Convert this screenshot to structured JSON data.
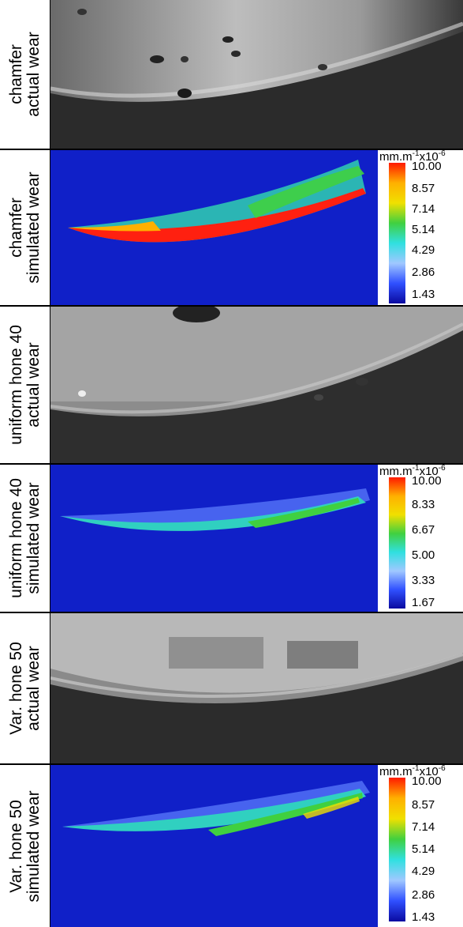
{
  "panels": [
    {
      "type": "actual",
      "label_line1": "chamfer",
      "label_line2": "actual wear"
    },
    {
      "type": "simulated",
      "label_line1": "chamfer",
      "label_line2": "simulated wear",
      "colorbar": {
        "unit": "mm.m",
        "exp1": "-1",
        "mult": "x10",
        "exp2": "-6",
        "ticks": [
          "10.00",
          "8.57",
          "7.14",
          "5.14",
          "4.29",
          "2.86",
          "1.43"
        ]
      }
    },
    {
      "type": "actual",
      "label_line1": "uniform hone 40",
      "label_line2": "actual wear"
    },
    {
      "type": "simulated",
      "label_line1": "uniform hone 40",
      "label_line2": "simulated wear",
      "colorbar": {
        "unit": "mm.m",
        "exp1": "-1",
        "mult": "x10",
        "exp2": "-6",
        "ticks": [
          "10.00",
          "8.33",
          "6.67",
          "5.00",
          "3.33",
          "1.67"
        ]
      }
    },
    {
      "type": "actual",
      "label_line1": "Var. hone 50",
      "label_line2": "actual wear"
    },
    {
      "type": "simulated",
      "label_line1": "Var. hone 50",
      "label_line2": "simulated wear",
      "colorbar": {
        "unit": "mm.m",
        "exp1": "-1",
        "mult": "x10",
        "exp2": "-6",
        "ticks": [
          "10.00",
          "8.57",
          "7.14",
          "5.14",
          "4.29",
          "2.86",
          "1.43"
        ]
      }
    }
  ],
  "colors": {
    "colormap": [
      "#ff1a00",
      "#ffb000",
      "#f0e000",
      "#40d040",
      "#30e0e0",
      "#a0c8ff",
      "#3050ff",
      "#0a0aa0"
    ],
    "plot_bg": "#1020c8"
  }
}
